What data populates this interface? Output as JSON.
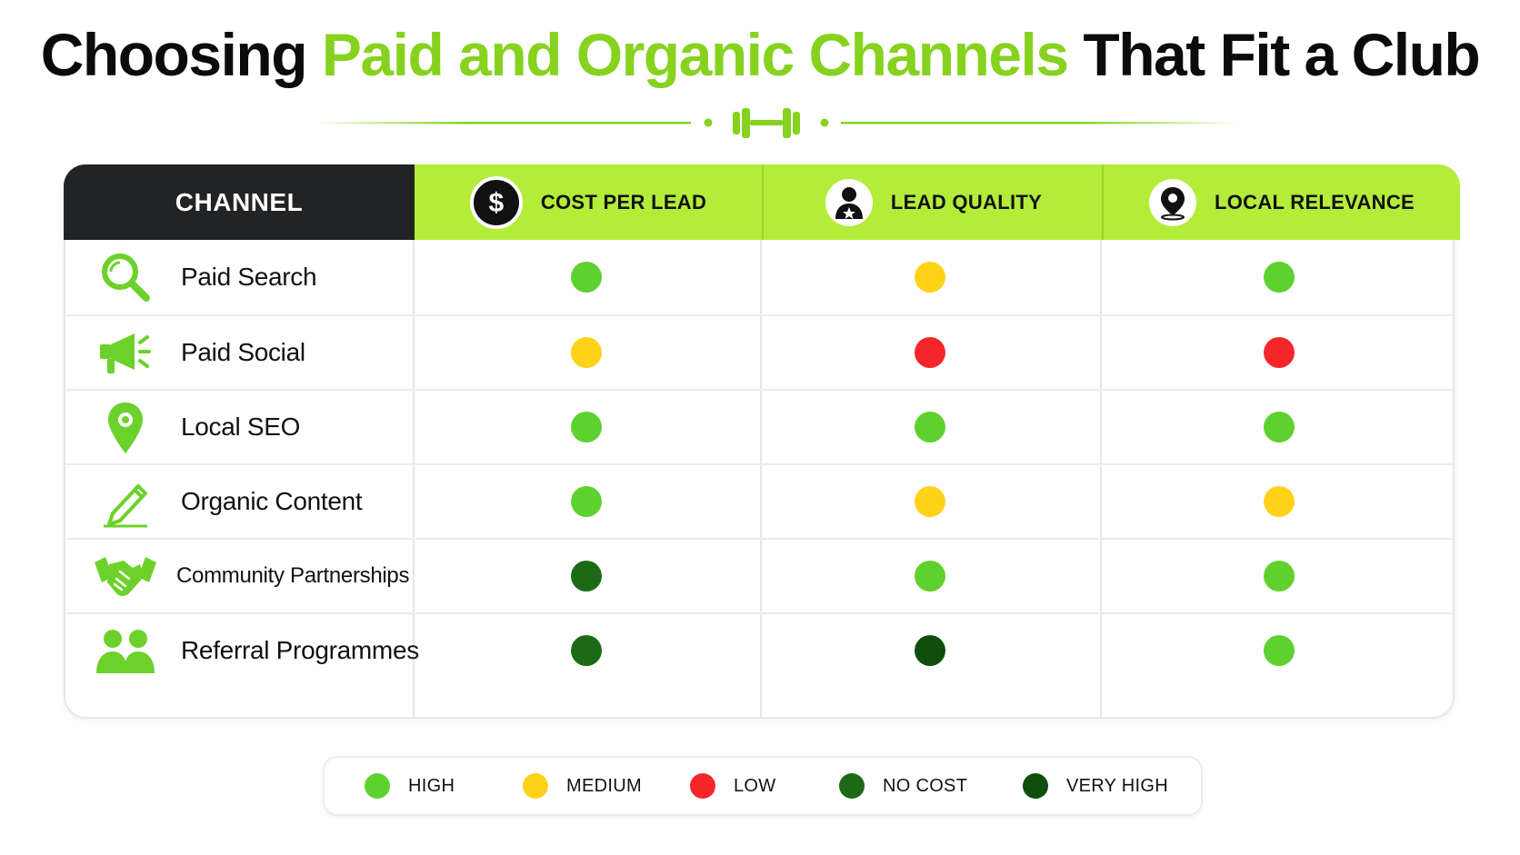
{
  "title": {
    "part1": "Choosing ",
    "accent": "Paid and Organic Channels",
    "part2": " That Fit a Club"
  },
  "colors": {
    "high": "#5fd12e",
    "medium": "#ffd21a",
    "low": "#f5262a",
    "no_cost": "#1d6a16",
    "very_high": "#0f4d0c",
    "header_green": "#b4ec3a",
    "header_dark": "#222324",
    "accent": "#86d21f"
  },
  "header": {
    "channel": "CHANNEL",
    "columns": [
      {
        "label": "COST PER LEAD",
        "icon": "dollar-icon"
      },
      {
        "label": "LEAD QUALITY",
        "icon": "person-star-icon"
      },
      {
        "label": "LOCAL RELEVANCE",
        "icon": "location-pin-icon"
      }
    ]
  },
  "rows": [
    {
      "label": "Paid Search",
      "icon": "magnifier-icon",
      "ratings": [
        "high",
        "medium",
        "high"
      ]
    },
    {
      "label": "Paid Social",
      "icon": "megaphone-icon",
      "ratings": [
        "medium",
        "low",
        "low"
      ]
    },
    {
      "label": "Local SEO",
      "icon": "map-pin-icon",
      "ratings": [
        "high",
        "high",
        "high"
      ]
    },
    {
      "label": "Organic Content",
      "icon": "pencil-icon",
      "ratings": [
        "high",
        "medium",
        "medium"
      ]
    },
    {
      "label": "Community Partnerships",
      "icon": "handshake-icon",
      "ratings": [
        "no_cost",
        "high",
        "high"
      ]
    },
    {
      "label": "Referral Programmes",
      "icon": "people-icon",
      "ratings": [
        "no_cost",
        "very_high",
        "high"
      ]
    }
  ],
  "legend": [
    {
      "key": "high",
      "label": "HIGH"
    },
    {
      "key": "medium",
      "label": "MEDIUM"
    },
    {
      "key": "low",
      "label": "LOW"
    },
    {
      "key": "no_cost",
      "label": "NO COST"
    },
    {
      "key": "very_high",
      "label": "VERY HIGH"
    }
  ]
}
